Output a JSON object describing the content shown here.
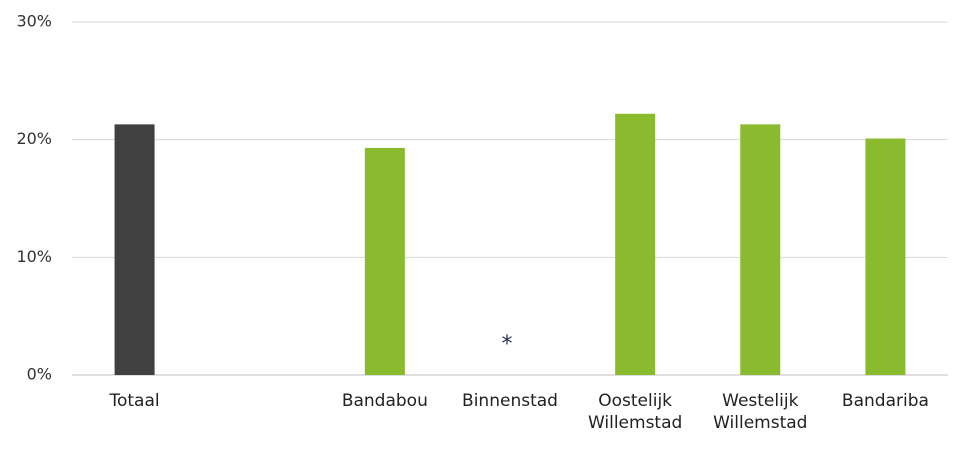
{
  "chart_data": {
    "type": "bar",
    "categories": [
      "Totaal",
      null,
      "Bandabou",
      "Binnenstad",
      "Oostelijk Willemstad",
      "Westelijk Willemstad",
      "Bandariba"
    ],
    "values": [
      21.3,
      null,
      19.3,
      null,
      22.2,
      21.3,
      20.1
    ],
    "colors": [
      "#404040",
      "#8aba2e",
      "#8aba2e",
      "#8aba2e",
      "#8aba2e",
      "#8aba2e",
      "#8aba2e"
    ],
    "ylim": [
      0,
      30
    ],
    "yticks": [
      {
        "value": 0,
        "label": "0%"
      },
      {
        "value": 10,
        "label": "10%"
      },
      {
        "value": 20,
        "label": "20%"
      },
      {
        "value": 30,
        "label": "30%"
      }
    ],
    "grid": true,
    "annotation": "*"
  }
}
